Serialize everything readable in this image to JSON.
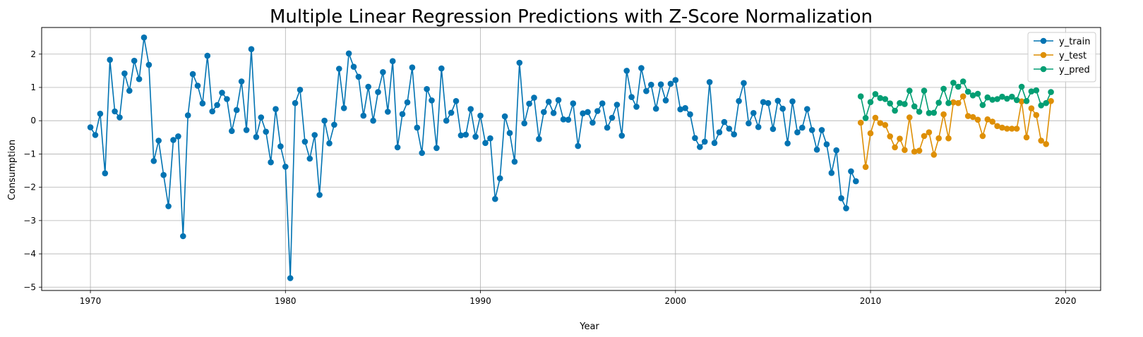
{
  "chart_data": {
    "type": "line",
    "title": "Multiple Linear Regression Predictions with Z-Score Normalization",
    "xlabel": "Year",
    "ylabel": "Consumption",
    "xlim": [
      1967.5,
      2021.8
    ],
    "ylim": [
      -5.1,
      2.8
    ],
    "xticks": [
      1970,
      1980,
      1990,
      2000,
      2010,
      2020
    ],
    "yticks": [
      2,
      1,
      0,
      -1,
      -2,
      -3,
      -4,
      -5
    ],
    "ytick_labels": [
      "2",
      "1",
      "0",
      "−1",
      "−2",
      "−3",
      "−4",
      "−5"
    ],
    "grid": true,
    "legend_position": "top-right",
    "series": [
      {
        "name": "y_train",
        "color": "#0173b2",
        "x_start": 1970.0,
        "x_step": 0.25,
        "values": [
          -0.2,
          -0.43,
          0.21,
          -1.58,
          1.83,
          0.28,
          0.1,
          1.42,
          0.9,
          1.8,
          1.25,
          2.5,
          1.68,
          -1.21,
          -0.6,
          -1.63,
          -2.57,
          -0.58,
          -0.47,
          -3.47,
          0.16,
          1.4,
          1.05,
          0.52,
          1.95,
          0.28,
          0.47,
          0.84,
          0.65,
          -0.31,
          0.32,
          1.18,
          -0.28,
          2.15,
          -0.49,
          0.1,
          -0.33,
          -1.25,
          0.35,
          -0.77,
          -1.38,
          -4.73,
          0.53,
          0.93,
          -0.63,
          -1.14,
          -0.43,
          -2.23,
          0.0,
          -0.68,
          -0.12,
          1.56,
          0.38,
          2.02,
          1.62,
          1.32,
          0.15,
          1.02,
          0.0,
          0.86,
          1.46,
          0.27,
          1.79,
          -0.8,
          0.2,
          0.55,
          1.6,
          -0.21,
          -0.97,
          0.95,
          0.61,
          -0.82,
          1.57,
          0.0,
          0.24,
          0.59,
          -0.44,
          -0.42,
          0.35,
          -0.48,
          0.15,
          -0.67,
          -0.53,
          -2.35,
          -1.73,
          0.13,
          -0.37,
          -1.23,
          1.74,
          -0.08,
          0.51,
          0.69,
          -0.55,
          0.26,
          0.57,
          0.23,
          0.62,
          0.04,
          0.03,
          0.52,
          -0.76,
          0.22,
          0.26,
          -0.06,
          0.29,
          0.52,
          -0.21,
          0.09,
          0.48,
          -0.45,
          1.5,
          0.71,
          0.42,
          1.58,
          0.89,
          1.08,
          0.36,
          1.09,
          0.61,
          1.11,
          1.22,
          0.34,
          0.38,
          0.19,
          -0.52,
          -0.79,
          -0.63,
          1.16,
          -0.67,
          -0.35,
          -0.04,
          -0.24,
          -0.41,
          0.59,
          1.13,
          -0.08,
          0.23,
          -0.19,
          0.56,
          0.53,
          -0.25,
          0.6,
          0.36,
          -0.68,
          0.58,
          -0.35,
          -0.21,
          0.35,
          -0.28,
          -0.87,
          -0.28,
          -0.71,
          -1.57,
          -0.89,
          -2.33,
          -2.63,
          -1.52,
          -1.82
        ]
      },
      {
        "name": "y_test",
        "color": "#de8f05",
        "x_start": 2009.5,
        "x_step": 0.25,
        "values": [
          -0.06,
          -1.39,
          -0.38,
          0.09,
          -0.07,
          -0.13,
          -0.47,
          -0.8,
          -0.54,
          -0.88,
          0.1,
          -0.93,
          -0.9,
          -0.46,
          -0.35,
          -1.02,
          -0.53,
          0.19,
          -0.53,
          0.55,
          0.53,
          0.73,
          0.14,
          0.11,
          0.03,
          -0.46,
          0.04,
          -0.03,
          -0.16,
          -0.21,
          -0.24,
          -0.24,
          -0.24,
          0.58,
          -0.5,
          0.37,
          0.17,
          -0.6,
          -0.7,
          0.59
        ]
      },
      {
        "name": "y_pred",
        "color": "#029e73",
        "x_start": 2009.5,
        "x_step": 0.25,
        "values": [
          0.73,
          0.08,
          0.56,
          0.8,
          0.68,
          0.65,
          0.52,
          0.3,
          0.53,
          0.5,
          0.9,
          0.43,
          0.27,
          0.9,
          0.23,
          0.24,
          0.54,
          0.96,
          0.53,
          1.14,
          1.02,
          1.18,
          0.87,
          0.76,
          0.81,
          0.47,
          0.7,
          0.63,
          0.65,
          0.72,
          0.66,
          0.72,
          0.62,
          1.02,
          0.59,
          0.88,
          0.91,
          0.46,
          0.53,
          0.86
        ]
      }
    ]
  }
}
